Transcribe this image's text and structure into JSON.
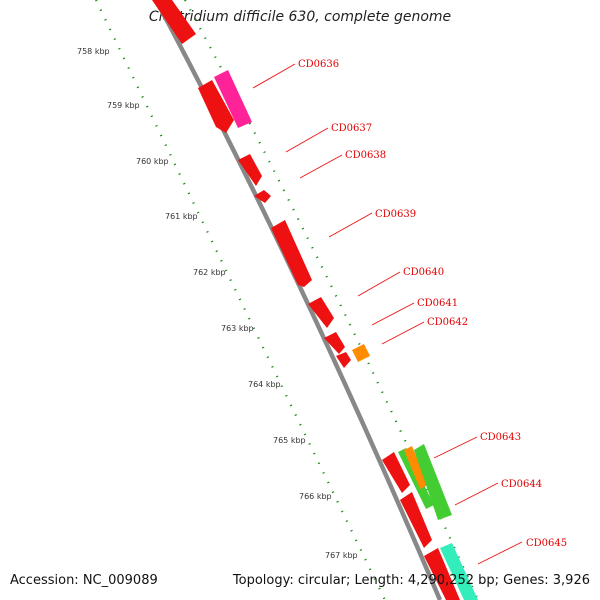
{
  "title": "Clostridium difficile 630, complete genome",
  "footer": {
    "accession": "Accession: NC_009089",
    "summary": "Topology: circular; Length: 4,290,252 bp; Genes: 3,926"
  },
  "kbp_ticks": [
    "758 kbp",
    "759 kbp",
    "760 kbp",
    "761 kbp",
    "762 kbp",
    "763 kbp",
    "764 kbp",
    "765 kbp",
    "766 kbp",
    "767 kbp"
  ],
  "gene_labels": [
    "CD0636",
    "CD0637",
    "CD0638",
    "CD0639",
    "CD0640",
    "CD0641",
    "CD0642",
    "CD0643",
    "CD0644",
    "CD0645"
  ],
  "colors": {
    "backbone": "#888888",
    "cds_red": "#ee1111",
    "magenta": "#ff2299",
    "orange": "#ff8c00",
    "green": "#44cc33",
    "teal": "#33eebb",
    "dotted_track": "#1a8a1a",
    "label_red": "#e00000"
  }
}
